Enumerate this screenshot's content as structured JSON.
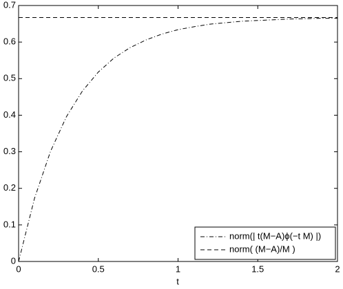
{
  "chart_data": {
    "type": "line",
    "xlabel": "t",
    "x": [
      0,
      0.1,
      0.2,
      0.3,
      0.4,
      0.5,
      0.6,
      0.7,
      0.8,
      0.9,
      1.0,
      1.1,
      1.2,
      1.3,
      1.4,
      1.5,
      1.6,
      1.7,
      1.8,
      1.9,
      2.0
    ],
    "series": [
      {
        "name": "norm(| t(M−A)ϕ(−t M) |)",
        "color": "#000000",
        "linestyle": "dashdot",
        "values": [
          0,
          0.173,
          0.301,
          0.396,
          0.466,
          0.518,
          0.557,
          0.585,
          0.606,
          0.622,
          0.634,
          0.642,
          0.649,
          0.653,
          0.657,
          0.659,
          0.661,
          0.663,
          0.664,
          0.665,
          0.665
        ]
      },
      {
        "name": "norm( (M−A)/M )",
        "color": "#000000",
        "linestyle": "dashed",
        "values": [
          0.667,
          0.667,
          0.667,
          0.667,
          0.667,
          0.667,
          0.667,
          0.667,
          0.667,
          0.667,
          0.667,
          0.667,
          0.667,
          0.667,
          0.667,
          0.667,
          0.667,
          0.667,
          0.667,
          0.667,
          0.667
        ]
      }
    ],
    "xlim": [
      0,
      2
    ],
    "xticks": [
      0,
      0.5,
      1,
      1.5,
      2
    ],
    "ylim": [
      0,
      0.7
    ],
    "yticks": [
      0,
      0.1,
      0.2,
      0.3,
      0.4,
      0.5,
      0.6,
      0.7
    ],
    "grid": false,
    "legend": "lower right"
  }
}
